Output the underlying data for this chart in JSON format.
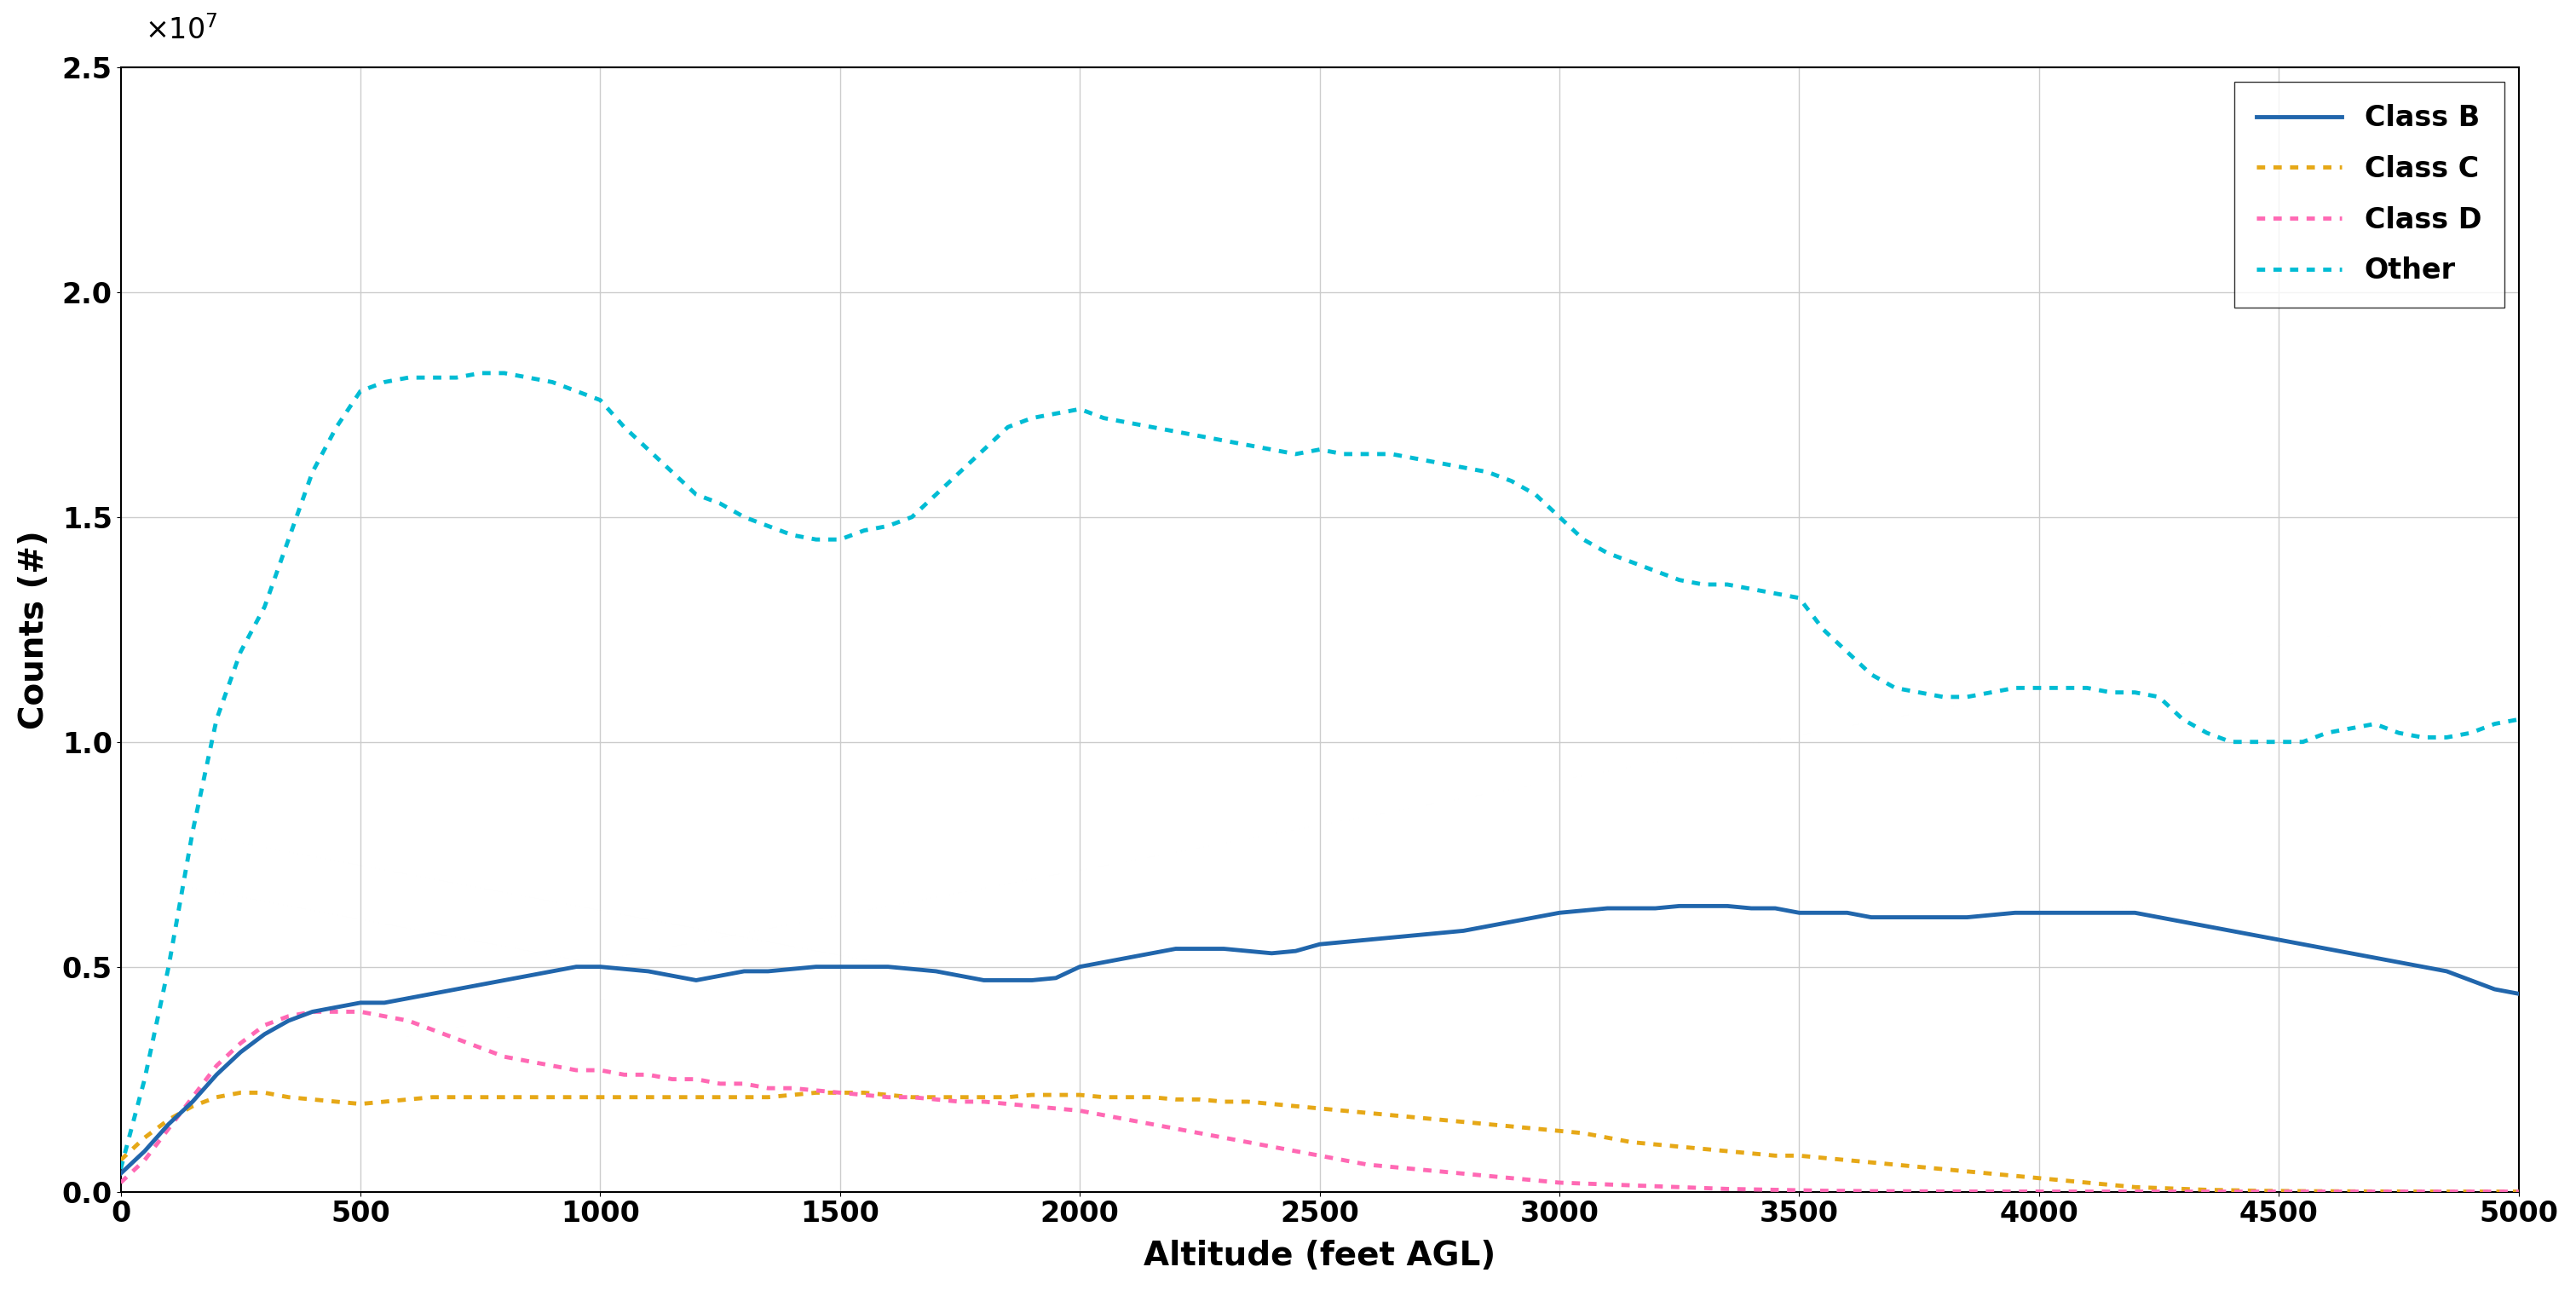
{
  "title": "",
  "xlabel": "Altitude (feet AGL)",
  "ylabel": "Counts (#)",
  "xlim": [
    0,
    5000
  ],
  "ylim": [
    0,
    25000000.0
  ],
  "ytick_multiplier": 10000000.0,
  "background_color": "#ffffff",
  "grid_color": "#cccccc",
  "class_b_color": "#2166ac",
  "class_c_color": "#e6a817",
  "class_d_color": "#ff69b4",
  "other_color": "#00bcd4",
  "altitude": [
    0,
    50,
    100,
    150,
    200,
    250,
    300,
    350,
    400,
    450,
    500,
    550,
    600,
    650,
    700,
    750,
    800,
    850,
    900,
    950,
    1000,
    1050,
    1100,
    1150,
    1200,
    1250,
    1300,
    1350,
    1400,
    1450,
    1500,
    1550,
    1600,
    1650,
    1700,
    1750,
    1800,
    1850,
    1900,
    1950,
    2000,
    2050,
    2100,
    2150,
    2200,
    2250,
    2300,
    2350,
    2400,
    2450,
    2500,
    2550,
    2600,
    2650,
    2700,
    2750,
    2800,
    2850,
    2900,
    2950,
    3000,
    3050,
    3100,
    3150,
    3200,
    3250,
    3300,
    3350,
    3400,
    3450,
    3500,
    3550,
    3600,
    3650,
    3700,
    3750,
    3800,
    3850,
    3900,
    3950,
    4000,
    4050,
    4100,
    4150,
    4200,
    4250,
    4300,
    4350,
    4400,
    4450,
    4500,
    4550,
    4600,
    4650,
    4700,
    4750,
    4800,
    4850,
    4900,
    4950,
    5000
  ],
  "class_b": [
    400000,
    900000,
    1500000,
    2000000,
    2600000,
    3100000,
    3500000,
    3800000,
    4000000,
    4100000,
    4200000,
    4200000,
    4300000,
    4400000,
    4500000,
    4600000,
    4700000,
    4800000,
    4900000,
    5000000,
    5000000,
    4950000,
    4900000,
    4800000,
    4700000,
    4800000,
    4900000,
    4900000,
    4950000,
    5000000,
    5000000,
    5000000,
    5000000,
    4950000,
    4900000,
    4800000,
    4700000,
    4700000,
    4700000,
    4750000,
    5000000,
    5100000,
    5200000,
    5300000,
    5400000,
    5400000,
    5400000,
    5350000,
    5300000,
    5350000,
    5500000,
    5550000,
    5600000,
    5650000,
    5700000,
    5750000,
    5800000,
    5900000,
    6000000,
    6100000,
    6200000,
    6250000,
    6300000,
    6300000,
    6300000,
    6350000,
    6350000,
    6350000,
    6300000,
    6300000,
    6200000,
    6200000,
    6200000,
    6100000,
    6100000,
    6100000,
    6100000,
    6100000,
    6150000,
    6200000,
    6200000,
    6200000,
    6200000,
    6200000,
    6200000,
    6100000,
    6000000,
    5900000,
    5800000,
    5700000,
    5600000,
    5500000,
    5400000,
    5300000,
    5200000,
    5100000,
    5000000,
    4900000,
    4700000,
    4500000,
    4400000
  ],
  "class_c": [
    700000,
    1200000,
    1600000,
    1900000,
    2100000,
    2200000,
    2200000,
    2100000,
    2050000,
    2000000,
    1950000,
    2000000,
    2050000,
    2100000,
    2100000,
    2100000,
    2100000,
    2100000,
    2100000,
    2100000,
    2100000,
    2100000,
    2100000,
    2100000,
    2100000,
    2100000,
    2100000,
    2100000,
    2150000,
    2200000,
    2200000,
    2200000,
    2150000,
    2100000,
    2100000,
    2100000,
    2100000,
    2100000,
    2150000,
    2150000,
    2150000,
    2100000,
    2100000,
    2100000,
    2050000,
    2050000,
    2000000,
    2000000,
    1950000,
    1900000,
    1850000,
    1800000,
    1750000,
    1700000,
    1650000,
    1600000,
    1550000,
    1500000,
    1450000,
    1400000,
    1350000,
    1300000,
    1200000,
    1100000,
    1050000,
    1000000,
    950000,
    900000,
    850000,
    800000,
    800000,
    750000,
    700000,
    650000,
    600000,
    550000,
    500000,
    450000,
    400000,
    350000,
    300000,
    250000,
    200000,
    150000,
    100000,
    80000,
    60000,
    40000,
    30000,
    20000,
    15000,
    10000,
    8000,
    6000,
    4000,
    3000,
    2000,
    1000,
    500,
    200,
    100
  ],
  "class_d": [
    200000,
    700000,
    1400000,
    2100000,
    2800000,
    3300000,
    3700000,
    3900000,
    4000000,
    4000000,
    4000000,
    3900000,
    3800000,
    3600000,
    3400000,
    3200000,
    3000000,
    2900000,
    2800000,
    2700000,
    2700000,
    2600000,
    2600000,
    2500000,
    2500000,
    2400000,
    2400000,
    2300000,
    2300000,
    2250000,
    2200000,
    2150000,
    2100000,
    2100000,
    2050000,
    2000000,
    2000000,
    1950000,
    1900000,
    1850000,
    1800000,
    1700000,
    1600000,
    1500000,
    1400000,
    1300000,
    1200000,
    1100000,
    1000000,
    900000,
    800000,
    700000,
    600000,
    550000,
    500000,
    450000,
    400000,
    350000,
    300000,
    250000,
    200000,
    180000,
    160000,
    140000,
    120000,
    100000,
    80000,
    60000,
    50000,
    40000,
    30000,
    20000,
    15000,
    10000,
    8000,
    6000,
    4000,
    3000,
    2000,
    1500,
    1000,
    800,
    600,
    400,
    300,
    200,
    150,
    100,
    80,
    60,
    40,
    30,
    20,
    15,
    10,
    8,
    6,
    4,
    3,
    2,
    1
  ],
  "other": [
    500000,
    2500000,
    5000000,
    8000000,
    10500000,
    12000000,
    13000000,
    14500000,
    16000000,
    17000000,
    17800000,
    18000000,
    18100000,
    18100000,
    18100000,
    18200000,
    18200000,
    18100000,
    18000000,
    17800000,
    17600000,
    17000000,
    16500000,
    16000000,
    15500000,
    15300000,
    15000000,
    14800000,
    14600000,
    14500000,
    14500000,
    14700000,
    14800000,
    15000000,
    15500000,
    16000000,
    16500000,
    17000000,
    17200000,
    17300000,
    17400000,
    17200000,
    17100000,
    17000000,
    16900000,
    16800000,
    16700000,
    16600000,
    16500000,
    16400000,
    16500000,
    16400000,
    16400000,
    16400000,
    16300000,
    16200000,
    16100000,
    16000000,
    15800000,
    15500000,
    15000000,
    14500000,
    14200000,
    14000000,
    13800000,
    13600000,
    13500000,
    13500000,
    13400000,
    13300000,
    13200000,
    12500000,
    12000000,
    11500000,
    11200000,
    11100000,
    11000000,
    11000000,
    11100000,
    11200000,
    11200000,
    11200000,
    11200000,
    11100000,
    11100000,
    11000000,
    10500000,
    10200000,
    10000000,
    10000000,
    10000000,
    10000000,
    10200000,
    10300000,
    10400000,
    10200000,
    10100000,
    10100000,
    10200000,
    10400000,
    10500000
  ]
}
